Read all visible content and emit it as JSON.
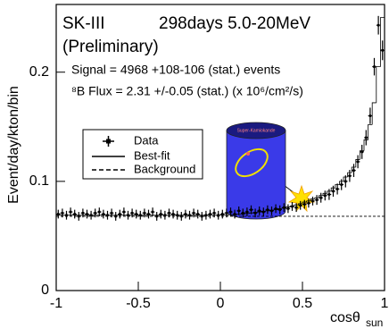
{
  "chart_data": {
    "type": "scatter-hist",
    "title": "SK-III",
    "subtitle": "298days 5.0-20MeV",
    "note": "(Preliminary)",
    "annotations": [
      "Signal = 4968 +108-106 (stat.)  events",
      "⁸B Flux = 2.31 +/-0.05 (stat.)  (x 10⁶/cm²/s)"
    ],
    "illustration_label": "Super-Kamiokande",
    "y_label": "Event/day/kton/bin",
    "x_label": "cosθ",
    "x_label_sub": "sun",
    "xlim": [
      -1,
      1
    ],
    "ylim": [
      0,
      0.262
    ],
    "xticks": [
      -1,
      -0.5,
      0,
      0.5,
      1
    ],
    "yticks": [
      0,
      0.1,
      0.2
    ],
    "x": [
      -0.9875,
      -0.9625,
      -0.9375,
      -0.9125,
      -0.8875,
      -0.8625,
      -0.8375,
      -0.8125,
      -0.7875,
      -0.7625,
      -0.7375,
      -0.7125,
      -0.6875,
      -0.6625,
      -0.6375,
      -0.6125,
      -0.5875,
      -0.5625,
      -0.5375,
      -0.5125,
      -0.4875,
      -0.4625,
      -0.4375,
      -0.4125,
      -0.3875,
      -0.3625,
      -0.3375,
      -0.3125,
      -0.2875,
      -0.2625,
      -0.2375,
      -0.2125,
      -0.1875,
      -0.1625,
      -0.1375,
      -0.1125,
      -0.0875,
      -0.0625,
      -0.0375,
      -0.0125,
      0.0125,
      0.0375,
      0.0625,
      0.0875,
      0.1125,
      0.1375,
      0.1625,
      0.1875,
      0.2125,
      0.2375,
      0.2625,
      0.2875,
      0.3125,
      0.3375,
      0.3625,
      0.3875,
      0.4125,
      0.4375,
      0.4625,
      0.4875,
      0.5125,
      0.5375,
      0.5625,
      0.5875,
      0.6125,
      0.6375,
      0.6625,
      0.6875,
      0.7125,
      0.7375,
      0.7625,
      0.7875,
      0.8125,
      0.8375,
      0.8625,
      0.8875,
      0.9125,
      0.9375,
      0.9625,
      0.9875
    ],
    "series": [
      {
        "name": "Data",
        "color": "#000000",
        "values": [
          0.07,
          0.071,
          0.069,
          0.072,
          0.07,
          0.068,
          0.071,
          0.07,
          0.069,
          0.071,
          0.072,
          0.07,
          0.069,
          0.071,
          0.068,
          0.07,
          0.072,
          0.069,
          0.071,
          0.07,
          0.069,
          0.071,
          0.07,
          0.072,
          0.068,
          0.07,
          0.069,
          0.071,
          0.07,
          0.069,
          0.068,
          0.07,
          0.069,
          0.071,
          0.07,
          0.068,
          0.069,
          0.07,
          0.071,
          0.069,
          0.07,
          0.071,
          0.072,
          0.07,
          0.073,
          0.071,
          0.072,
          0.074,
          0.071,
          0.073,
          0.072,
          0.074,
          0.073,
          0.075,
          0.074,
          0.076,
          0.075,
          0.077,
          0.076,
          0.078,
          0.079,
          0.08,
          0.082,
          0.083,
          0.085,
          0.087,
          0.088,
          0.091,
          0.093,
          0.097,
          0.1,
          0.105,
          0.11,
          0.118,
          0.127,
          0.14,
          0.16,
          0.205,
          0.243,
          0.22
        ],
        "errors": [
          0.004,
          0.004,
          0.004,
          0.004,
          0.004,
          0.004,
          0.004,
          0.004,
          0.004,
          0.004,
          0.004,
          0.004,
          0.004,
          0.004,
          0.004,
          0.004,
          0.004,
          0.004,
          0.004,
          0.004,
          0.004,
          0.004,
          0.004,
          0.004,
          0.004,
          0.004,
          0.004,
          0.004,
          0.004,
          0.004,
          0.004,
          0.004,
          0.004,
          0.004,
          0.004,
          0.004,
          0.004,
          0.004,
          0.004,
          0.004,
          0.004,
          0.004,
          0.004,
          0.004,
          0.004,
          0.004,
          0.004,
          0.004,
          0.004,
          0.004,
          0.004,
          0.004,
          0.004,
          0.004,
          0.004,
          0.004,
          0.004,
          0.004,
          0.004,
          0.004,
          0.004,
          0.004,
          0.004,
          0.0045,
          0.0045,
          0.0045,
          0.005,
          0.005,
          0.005,
          0.005,
          0.0055,
          0.0055,
          0.006,
          0.006,
          0.0065,
          0.007,
          0.0075,
          0.008,
          0.0085,
          0.009
        ]
      },
      {
        "name": "Best-fit",
        "color": "#000000",
        "values": [
          0.069,
          0.069,
          0.069,
          0.069,
          0.069,
          0.069,
          0.069,
          0.069,
          0.069,
          0.069,
          0.069,
          0.069,
          0.069,
          0.069,
          0.069,
          0.069,
          0.069,
          0.069,
          0.069,
          0.069,
          0.069,
          0.069,
          0.069,
          0.069,
          0.069,
          0.069,
          0.069,
          0.069,
          0.069,
          0.069,
          0.069,
          0.069,
          0.069,
          0.069,
          0.069,
          0.069,
          0.069,
          0.069,
          0.069,
          0.069,
          0.069,
          0.069,
          0.0695,
          0.0695,
          0.07,
          0.07,
          0.0705,
          0.071,
          0.0715,
          0.072,
          0.0725,
          0.073,
          0.0735,
          0.074,
          0.075,
          0.0755,
          0.0765,
          0.0775,
          0.0785,
          0.0795,
          0.081,
          0.082,
          0.084,
          0.085,
          0.087,
          0.089,
          0.091,
          0.094,
          0.097,
          0.1,
          0.104,
          0.108,
          0.113,
          0.12,
          0.128,
          0.138,
          0.152,
          0.172,
          0.205,
          0.25
        ]
      },
      {
        "name": "Background",
        "color": "#000000",
        "dashed": true,
        "x": [
          -1,
          1
        ],
        "values": [
          0.068,
          0.068
        ]
      }
    ]
  }
}
